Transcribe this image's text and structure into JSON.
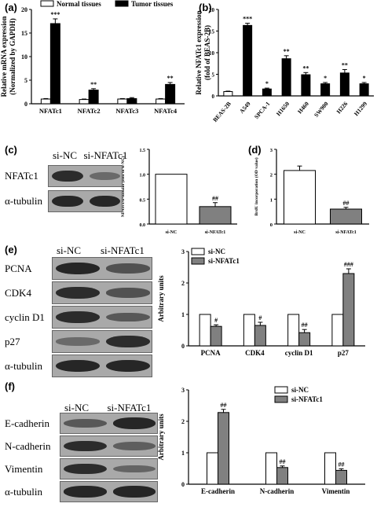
{
  "panels": {
    "a": {
      "label": "(a)"
    },
    "b": {
      "label": "(b)"
    },
    "c": {
      "label": "(c)"
    },
    "d": {
      "label": "(d)"
    },
    "e": {
      "label": "(e)"
    },
    "f": {
      "label": "(f)"
    }
  },
  "blots": {
    "c": {
      "headers": [
        "si-NC",
        "si-NFATc1"
      ],
      "rows": [
        "NFATc1",
        "α-tubulin"
      ],
      "intensity": [
        [
          0.85,
          0.35
        ],
        [
          0.9,
          0.9
        ]
      ]
    },
    "e": {
      "headers": [
        "si-NC",
        "si-NFATc1"
      ],
      "rows": [
        "PCNA",
        "CDK4",
        "cyclin D1",
        "p27",
        "α-tubulin"
      ],
      "intensity": [
        [
          0.9,
          0.55
        ],
        [
          0.85,
          0.55
        ],
        [
          0.85,
          0.5
        ],
        [
          0.35,
          0.85
        ],
        [
          0.9,
          0.9
        ]
      ]
    },
    "f": {
      "headers": [
        "si-NC",
        "si-NFATc1"
      ],
      "rows": [
        "E-cadherin",
        "N-cadherin",
        "Vimentin",
        "α-tubulin"
      ],
      "intensity": [
        [
          0.5,
          0.9
        ],
        [
          0.85,
          0.45
        ],
        [
          0.85,
          0.4
        ],
        [
          0.9,
          0.9
        ]
      ]
    }
  },
  "chart_data": [
    {
      "id": "a",
      "type": "bar",
      "categories": [
        "NFATc1",
        "NFATc2",
        "NFATc3",
        "NFATc4"
      ],
      "series": [
        {
          "name": "Normal tissues",
          "values": [
            1.0,
            0.9,
            1.0,
            1.0
          ],
          "errors": [
            0.1,
            0.1,
            0.1,
            0.1
          ],
          "color": "#ffffff",
          "sig": [
            "",
            "",
            "",
            ""
          ]
        },
        {
          "name": "Tumor tissues",
          "values": [
            17.0,
            2.9,
            1.1,
            4.1
          ],
          "errors": [
            1.0,
            0.3,
            0.2,
            0.4
          ],
          "color": "#000000",
          "sig": [
            "***",
            "**",
            "",
            "**"
          ]
        }
      ],
      "ylabel": [
        "Relative mRNA expression",
        "(Normalized by GAPDH)"
      ],
      "ylim": [
        0,
        20
      ],
      "yticks": [
        0,
        5,
        10,
        15,
        20
      ],
      "legend": "top"
    },
    {
      "id": "b",
      "type": "bar",
      "categories": [
        "BEAS-2B",
        "A549",
        "SPCA-1",
        "H1650",
        "H460",
        "SW900",
        "H226",
        "H1299"
      ],
      "values": [
        1.0,
        16.3,
        1.6,
        8.6,
        4.9,
        2.8,
        5.3,
        2.8
      ],
      "errors": [
        0.1,
        0.5,
        0.2,
        0.7,
        0.5,
        0.3,
        0.8,
        0.3
      ],
      "colors": [
        "#ffffff",
        "#000000",
        "#000000",
        "#000000",
        "#000000",
        "#000000",
        "#000000",
        "#000000"
      ],
      "sig": [
        "",
        "***",
        "*",
        "**",
        "**",
        "*",
        "**",
        "*"
      ],
      "ylabel": [
        "Relative NFATc1 expression",
        "(fold of BEAS-2B)"
      ],
      "ylim": [
        0,
        20
      ],
      "yticks": [
        0,
        5,
        10,
        15,
        20
      ]
    },
    {
      "id": "c",
      "type": "bar",
      "categories": [
        "si-NC",
        "si-NFATc1"
      ],
      "values": [
        1.0,
        0.35
      ],
      "errors": [
        0,
        0.08
      ],
      "colors": [
        "#ffffff",
        "#808080"
      ],
      "sig": [
        "",
        "##"
      ],
      "ylabel": [
        "NFATc1/α-tubulin (fold of si-NC)"
      ],
      "ylim": [
        0,
        1.5
      ],
      "yticks": [
        0.0,
        0.5,
        1.0,
        1.5
      ],
      "tickFormat": 1
    },
    {
      "id": "d",
      "type": "bar",
      "categories": [
        "si-NC",
        "si-NFATc1"
      ],
      "values": [
        2.15,
        0.6
      ],
      "errors": [
        0.18,
        0.07
      ],
      "colors": [
        "#ffffff",
        "#808080"
      ],
      "sig": [
        "",
        "##"
      ],
      "ylabel": [
        "BrdU incorporation (OD value)"
      ],
      "ylim": [
        0,
        3
      ],
      "yticks": [
        0,
        1,
        2,
        3
      ]
    },
    {
      "id": "e",
      "type": "bar",
      "categories": [
        "PCNA",
        "CDK4",
        "cyclin D1",
        "p27"
      ],
      "series": [
        {
          "name": "si-NC",
          "values": [
            1.0,
            1.0,
            1.0,
            1.0
          ],
          "errors": [
            0,
            0,
            0,
            0
          ],
          "color": "#ffffff",
          "sig": [
            "",
            "",
            "",
            ""
          ]
        },
        {
          "name": "si-NFATc1",
          "values": [
            0.62,
            0.65,
            0.42,
            2.3
          ],
          "errors": [
            0.05,
            0.1,
            0.1,
            0.15
          ],
          "color": "#808080",
          "sig": [
            "#",
            "#",
            "##",
            "###"
          ]
        }
      ],
      "ylabel": [
        "Arbitrary units"
      ],
      "ylim": [
        0,
        3
      ],
      "yticks": [
        0,
        1,
        2,
        3
      ],
      "legend": "top-left"
    },
    {
      "id": "f",
      "type": "bar",
      "categories": [
        "E-cadherin",
        "N-cadherin",
        "Vimentin"
      ],
      "series": [
        {
          "name": "si-NC",
          "values": [
            1.0,
            1.0,
            1.0
          ],
          "errors": [
            0,
            0,
            0
          ],
          "color": "#ffffff",
          "sig": [
            "",
            "",
            ""
          ]
        },
        {
          "name": "si-NFATc1",
          "values": [
            2.28,
            0.53,
            0.44
          ],
          "errors": [
            0.1,
            0.05,
            0.05
          ],
          "color": "#808080",
          "sig": [
            "##",
            "##",
            "##"
          ]
        }
      ],
      "ylabel": [
        "Arbitrary units"
      ],
      "ylim": [
        0,
        3
      ],
      "yticks": [
        0,
        1,
        2,
        3
      ],
      "legend": "top-right"
    }
  ]
}
